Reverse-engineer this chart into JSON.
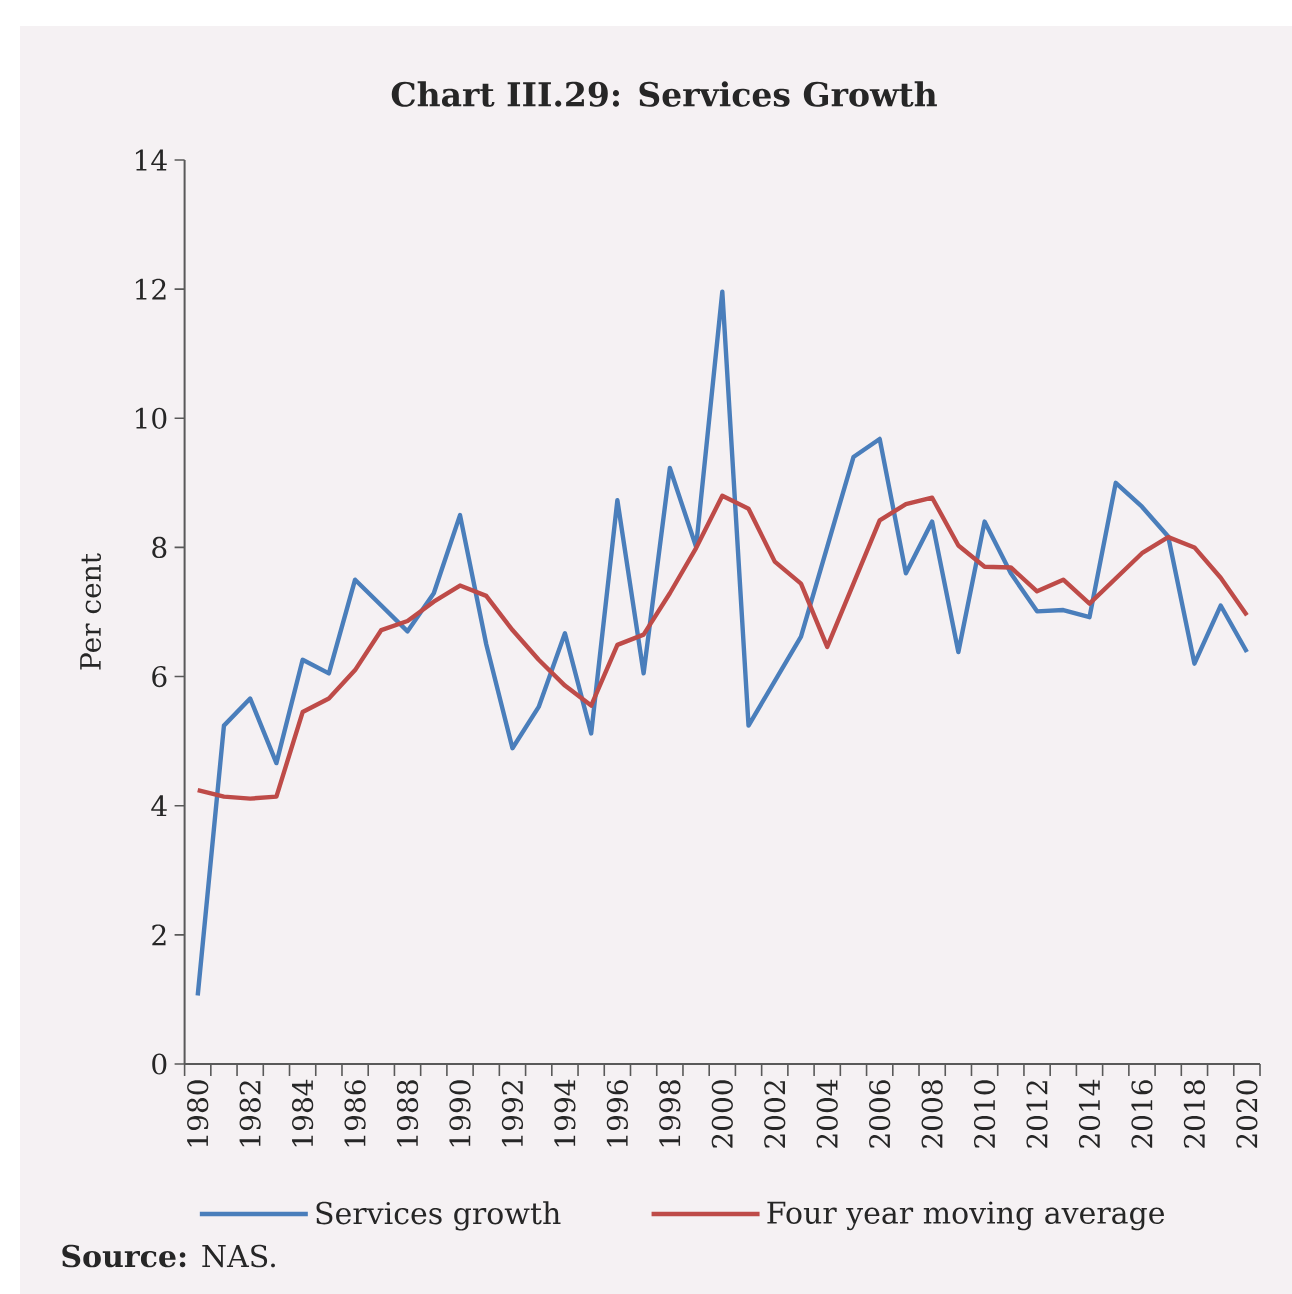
{
  "chart_data": {
    "type": "line",
    "title": "Chart III.29: Services Growth",
    "ylabel": "Per cent",
    "categories": [
      "1980",
      null,
      "1982",
      null,
      "1984",
      null,
      "1986",
      null,
      "1988",
      null,
      "1990",
      null,
      "1992",
      null,
      "1994",
      null,
      "1996",
      null,
      "1998",
      null,
      "2000",
      null,
      "2002",
      null,
      "2004",
      null,
      "2006",
      null,
      "2008",
      null,
      "2010",
      null,
      "2012",
      null,
      "2014",
      null,
      "2016",
      null,
      "2018",
      null,
      "2020"
    ],
    "ylim": [
      0,
      14
    ],
    "yticks": [
      0,
      2,
      4,
      6,
      8,
      10,
      12,
      14
    ],
    "legend": "bottom",
    "series": [
      {
        "name": "Services growth",
        "color": "#4a7ebb",
        "values": [
          1.06,
          5.24,
          5.66,
          4.66,
          6.26,
          6.05,
          7.5,
          7.1,
          6.7,
          7.29,
          8.5,
          6.5,
          4.89,
          5.53,
          6.67,
          5.12,
          8.73,
          6.05,
          9.23,
          8.01,
          11.96,
          5.24,
          5.93,
          6.62,
          8.01,
          9.4,
          9.68,
          7.6,
          8.4,
          6.38,
          8.4,
          7.6,
          7.01,
          7.03,
          6.92,
          9.0,
          8.63,
          8.17,
          6.2,
          7.1,
          6.38
        ]
      },
      {
        "name": "Four year moving average",
        "color": "#be4b48",
        "values": [
          4.24,
          4.14,
          4.11,
          4.14,
          5.45,
          5.66,
          6.1,
          6.72,
          6.86,
          7.16,
          7.41,
          7.25,
          6.72,
          6.26,
          5.86,
          5.55,
          6.49,
          6.65,
          7.29,
          7.99,
          8.8,
          8.6,
          7.78,
          7.44,
          6.46,
          7.44,
          8.42,
          8.67,
          8.77,
          8.03,
          7.7,
          7.69,
          7.32,
          7.5,
          7.13,
          7.52,
          7.91,
          8.16,
          8.0,
          7.53,
          6.95
        ]
      }
    ],
    "annotations": [
      "**Source:** NAS."
    ]
  }
}
